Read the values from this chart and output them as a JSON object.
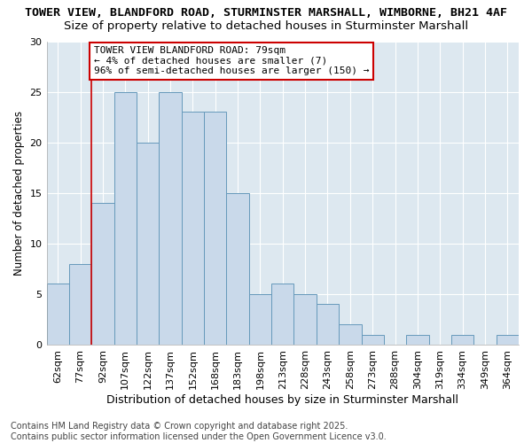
{
  "title": "TOWER VIEW, BLANDFORD ROAD, STURMINSTER MARSHALL, WIMBORNE, BH21 4AF",
  "subtitle": "Size of property relative to detached houses in Sturminster Marshall",
  "xlabel": "Distribution of detached houses by size in Sturminster Marshall",
  "ylabel": "Number of detached properties",
  "categories": [
    "62sqm",
    "77sqm",
    "92sqm",
    "107sqm",
    "122sqm",
    "137sqm",
    "152sqm",
    "168sqm",
    "183sqm",
    "198sqm",
    "213sqm",
    "228sqm",
    "243sqm",
    "258sqm",
    "273sqm",
    "288sqm",
    "304sqm",
    "319sqm",
    "334sqm",
    "349sqm",
    "364sqm"
  ],
  "values": [
    6,
    8,
    14,
    25,
    20,
    25,
    23,
    23,
    15,
    5,
    6,
    5,
    4,
    2,
    1,
    0,
    1,
    0,
    1,
    0,
    1
  ],
  "bar_color": "#c9d9ea",
  "bar_edge_color": "#6699bb",
  "vline_color": "#cc0000",
  "vline_xidx": 1,
  "annotation_text": "TOWER VIEW BLANDFORD ROAD: 79sqm\n← 4% of detached houses are smaller (7)\n96% of semi-detached houses are larger (150) →",
  "annotation_box_facecolor": "#ffffff",
  "annotation_box_edgecolor": "#cc0000",
  "ylim": [
    0,
    30
  ],
  "yticks": [
    0,
    5,
    10,
    15,
    20,
    25,
    30
  ],
  "plot_bg_color": "#dde8f0",
  "fig_bg_color": "#ffffff",
  "grid_color": "#ffffff",
  "footer": "Contains HM Land Registry data © Crown copyright and database right 2025.\nContains public sector information licensed under the Open Government Licence v3.0.",
  "title_fontsize": 9.5,
  "subtitle_fontsize": 9.5,
  "xlabel_fontsize": 9,
  "ylabel_fontsize": 8.5,
  "tick_fontsize": 8,
  "annot_fontsize": 8,
  "footer_fontsize": 7
}
